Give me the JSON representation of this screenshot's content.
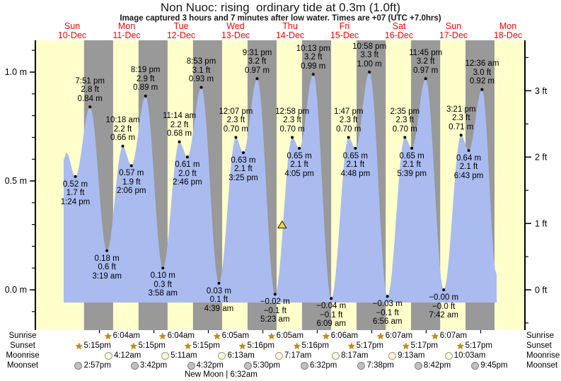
{
  "header": {
    "title": "Non Nuoc: rising  ordinary tide at 0.3m (1.0ft)",
    "subtitle": "Image captured 3 hours and 7 minutes after low water. Times are +07 (UTC +7.0hrs)"
  },
  "colors": {
    "plot_background": "#ffffcc",
    "night_band": "#999999",
    "tide_fill": "#a9bbef",
    "day_label": "#ff0000",
    "marker_fill": "#efd23e",
    "axis": "#000000"
  },
  "chart_data": {
    "type": "area",
    "title": "Non Nuoc: rising  ordinary tide at 0.3m (1.0ft)",
    "ylabel_left": "m",
    "ylabel_right": "ft",
    "y_range_m": [
      -0.17,
      1.13
    ],
    "grid": false,
    "days": [
      {
        "name": "Sun",
        "date": "10-Dec"
      },
      {
        "name": "Mon",
        "date": "11-Dec"
      },
      {
        "name": "Tue",
        "date": "12-Dec"
      },
      {
        "name": "Wed",
        "date": "13-Dec"
      },
      {
        "name": "Thu",
        "date": "14-Dec"
      },
      {
        "name": "Fri",
        "date": "15-Dec"
      },
      {
        "name": "Sat",
        "date": "16-Dec"
      },
      {
        "name": "Sun",
        "date": "17-Dec"
      },
      {
        "name": "Mon",
        "date": "18-Dec"
      }
    ],
    "left_axis_ticks": [
      {
        "value_m": 0.0,
        "label": "0.0 m"
      },
      {
        "value_m": 0.5,
        "label": "0.5 m"
      },
      {
        "value_m": 1.0,
        "label": "1.0 m"
      }
    ],
    "right_axis_ticks": [
      {
        "value_ft": 0,
        "label": "0 ft"
      },
      {
        "value_ft": 1,
        "label": "1 ft"
      },
      {
        "value_ft": 2,
        "label": "2 ft"
      },
      {
        "value_ft": 3,
        "label": "3 ft"
      }
    ],
    "extrema": [
      {
        "day": 0,
        "type": "low",
        "time": "1:24 pm",
        "m": "0.52",
        "ft": "1.7"
      },
      {
        "day": 0,
        "type": "high",
        "time": "7:51 pm",
        "m": "0.84",
        "ft": "2.8"
      },
      {
        "day": 1,
        "type": "low",
        "time": "3:19 am",
        "m": "0.18",
        "ft": "0.6"
      },
      {
        "day": 1,
        "type": "high",
        "time": "10:18 am",
        "m": "0.66",
        "ft": "2.2"
      },
      {
        "day": 1,
        "type": "low",
        "time": "2:06 pm",
        "m": "0.57",
        "ft": "1.9"
      },
      {
        "day": 1,
        "type": "high",
        "time": "8:19 pm",
        "m": "0.89",
        "ft": "2.9"
      },
      {
        "day": 2,
        "type": "low",
        "time": "3:58 am",
        "m": "0.10",
        "ft": "0.3"
      },
      {
        "day": 2,
        "type": "high",
        "time": "11:14 am",
        "m": "0.68",
        "ft": "2.2"
      },
      {
        "day": 2,
        "type": "low",
        "time": "2:46 pm",
        "m": "0.61",
        "ft": "2.0"
      },
      {
        "day": 2,
        "type": "high",
        "time": "8:53 pm",
        "m": "0.93",
        "ft": "3.1"
      },
      {
        "day": 3,
        "type": "low",
        "time": "4:39 am",
        "m": "0.03",
        "ft": "0.1"
      },
      {
        "day": 3,
        "type": "high",
        "time": "12:07 pm",
        "m": "0.70",
        "ft": "2.3"
      },
      {
        "day": 3,
        "type": "low",
        "time": "3:25 pm",
        "m": "0.63",
        "ft": "2.1"
      },
      {
        "day": 3,
        "type": "high",
        "time": "9:31 pm",
        "m": "0.97",
        "ft": "3.2"
      },
      {
        "day": 4,
        "type": "low",
        "time": "5:23 am",
        "m": "−0.02",
        "ft": "−0.1"
      },
      {
        "day": 4,
        "type": "high",
        "time": "12:58 pm",
        "m": "0.70",
        "ft": "2.3"
      },
      {
        "day": 4,
        "type": "low",
        "time": "4:05 pm",
        "m": "0.65",
        "ft": "2.1"
      },
      {
        "day": 4,
        "type": "high",
        "time": "10:13 pm",
        "m": "0.99",
        "ft": "3.2"
      },
      {
        "day": 5,
        "type": "low",
        "time": "6:09 am",
        "m": "−0.04",
        "ft": "−0.1"
      },
      {
        "day": 5,
        "type": "high",
        "time": "1:47 pm",
        "m": "0.70",
        "ft": "2.3"
      },
      {
        "day": 5,
        "type": "low",
        "time": "4:48 pm",
        "m": "0.65",
        "ft": "2.1"
      },
      {
        "day": 5,
        "type": "high",
        "time": "10:58 pm",
        "m": "1.00",
        "ft": "3.3"
      },
      {
        "day": 6,
        "type": "low",
        "time": "6:56 am",
        "m": "−0.03",
        "ft": "−0.1"
      },
      {
        "day": 6,
        "type": "high",
        "time": "2:35 pm",
        "m": "0.70",
        "ft": "2.3"
      },
      {
        "day": 6,
        "type": "low",
        "time": "5:39 pm",
        "m": "0.65",
        "ft": "2.1"
      },
      {
        "day": 6,
        "type": "high",
        "time": "11:45 pm",
        "m": "0.97",
        "ft": "3.2"
      },
      {
        "day": 7,
        "type": "low",
        "time": "7:42 am",
        "m": "−0.00",
        "ft": "−0.0"
      },
      {
        "day": 7,
        "type": "high",
        "time": "3:21 pm",
        "m": "0.71",
        "ft": "2.3"
      },
      {
        "day": 7,
        "type": "low",
        "time": "6:43 pm",
        "m": "0.64",
        "ft": "2.1"
      },
      {
        "day": 8,
        "type": "high",
        "time": "12:36 am",
        "m": "0.92",
        "ft": "3.0"
      }
    ],
    "current_marker": {
      "height_m": "0.3",
      "height_ft": "1.0"
    }
  },
  "astro": {
    "sunrise_label": "Sunrise",
    "sunset_label": "Sunset",
    "moonrise_label": "Moonrise",
    "moonset_label": "Moonset",
    "sunrise": [
      {
        "day": 1,
        "time": "6:04am"
      },
      {
        "day": 2,
        "time": "6:04am"
      },
      {
        "day": 3,
        "time": "6:05am"
      },
      {
        "day": 4,
        "time": "6:05am"
      },
      {
        "day": 5,
        "time": "6:06am"
      },
      {
        "day": 6,
        "time": "6:07am"
      },
      {
        "day": 7,
        "time": "6:07am"
      }
    ],
    "sunset": [
      {
        "day": 0,
        "time": "5:15pm"
      },
      {
        "day": 1,
        "time": "5:15pm"
      },
      {
        "day": 2,
        "time": "5:15pm"
      },
      {
        "day": 3,
        "time": "5:16pm"
      },
      {
        "day": 4,
        "time": "5:16pm"
      },
      {
        "day": 5,
        "time": "5:17pm"
      },
      {
        "day": 6,
        "time": "5:17pm"
      },
      {
        "day": 7,
        "time": "5:17pm"
      }
    ],
    "moonrise": [
      {
        "day": 1,
        "time": "4:12am"
      },
      {
        "day": 2,
        "time": "5:11am"
      },
      {
        "day": 3,
        "time": "6:13am"
      },
      {
        "day": 4,
        "time": "7:17am"
      },
      {
        "day": 5,
        "time": "8:17am"
      },
      {
        "day": 6,
        "time": "9:13am"
      },
      {
        "day": 7,
        "time": "10:03am"
      }
    ],
    "moonset": [
      {
        "day": 0,
        "time": "2:57pm"
      },
      {
        "day": 1,
        "time": "3:42pm"
      },
      {
        "day": 2,
        "time": "4:32pm"
      },
      {
        "day": 3,
        "time": "5:30pm"
      },
      {
        "day": 4,
        "time": "6:32pm"
      },
      {
        "day": 5,
        "time": "7:38pm"
      },
      {
        "day": 6,
        "time": "8:42pm"
      },
      {
        "day": 7,
        "time": "9:45pm"
      }
    ],
    "new_moon": {
      "phase": "New Moon",
      "time": "6:32am",
      "day": 3,
      "separator": "|"
    }
  }
}
